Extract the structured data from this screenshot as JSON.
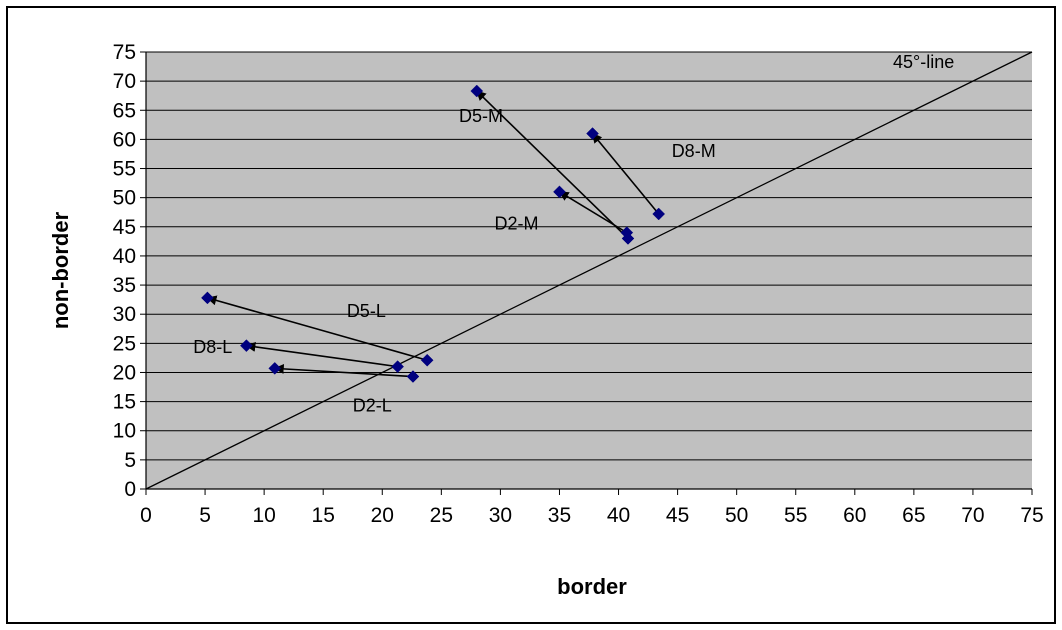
{
  "chart_data": {
    "type": "scatter",
    "xlabel": "border",
    "ylabel": "non-border",
    "xlim": [
      0,
      75
    ],
    "ylim": [
      0,
      75
    ],
    "xticks": [
      0,
      5,
      10,
      15,
      20,
      25,
      30,
      35,
      40,
      45,
      50,
      55,
      60,
      65,
      70,
      75
    ],
    "yticks": [
      0,
      5,
      10,
      15,
      20,
      25,
      30,
      35,
      40,
      45,
      50,
      55,
      60,
      65,
      70,
      75
    ],
    "grid": "horizontal",
    "colors": {
      "plot_bg": "#c0c0c0",
      "marker": "#00007f",
      "line": "#000000"
    },
    "reference_line": {
      "label": "45°-line",
      "from": [
        0,
        0
      ],
      "to": [
        75,
        75
      ]
    },
    "points": [
      {
        "x": 28.0,
        "y": 68.3
      },
      {
        "x": 37.8,
        "y": 61.0
      },
      {
        "x": 43.4,
        "y": 47.2
      },
      {
        "x": 35.0,
        "y": 51.0
      },
      {
        "x": 40.7,
        "y": 44.0
      },
      {
        "x": 40.8,
        "y": 43.0
      },
      {
        "x": 5.2,
        "y": 32.8
      },
      {
        "x": 8.5,
        "y": 24.6
      },
      {
        "x": 10.9,
        "y": 20.7
      },
      {
        "x": 21.3,
        "y": 21.0
      },
      {
        "x": 23.8,
        "y": 22.1
      },
      {
        "x": 22.6,
        "y": 19.3
      }
    ],
    "arrows": [
      {
        "label": "D5-M",
        "from": [
          40.8,
          43.0
        ],
        "to": [
          28.0,
          68.3
        ],
        "label_at": [
          26.5,
          63.0
        ]
      },
      {
        "label": "D8-M",
        "from": [
          43.4,
          47.2
        ],
        "to": [
          37.8,
          61.0
        ],
        "label_at": [
          44.5,
          57.0
        ]
      },
      {
        "label": "D2-M",
        "from": [
          40.7,
          44.0
        ],
        "to": [
          35.0,
          51.0
        ],
        "label_at": [
          29.5,
          44.5
        ]
      },
      {
        "label": "D5-L",
        "from": [
          23.8,
          22.1
        ],
        "to": [
          5.2,
          32.8
        ],
        "label_at": [
          17.0,
          29.5
        ]
      },
      {
        "label": "D8-L",
        "from": [
          21.3,
          21.0
        ],
        "to": [
          8.5,
          24.6
        ],
        "label_at": [
          4.0,
          23.3
        ]
      },
      {
        "label": "D2-L",
        "from": [
          22.6,
          19.3
        ],
        "to": [
          10.9,
          20.7
        ],
        "label_at": [
          17.5,
          13.3
        ]
      }
    ]
  }
}
